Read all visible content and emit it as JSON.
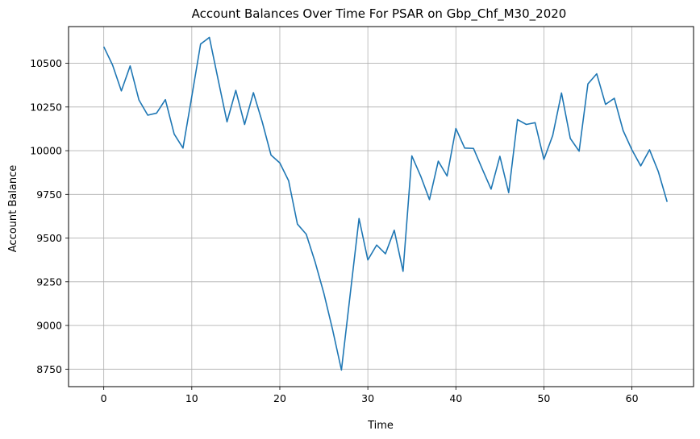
{
  "chart_data": {
    "type": "line",
    "title": "Account Balances Over Time For PSAR on Gbp_Chf_M30_2020",
    "xlabel": "Time",
    "ylabel": "Account Balance",
    "xlim": [
      -4,
      67
    ],
    "ylim": [
      8650,
      10710
    ],
    "xticks": [
      0,
      10,
      20,
      30,
      40,
      50,
      60
    ],
    "yticks": [
      8750,
      9000,
      9250,
      9500,
      9750,
      10000,
      10250,
      10500
    ],
    "grid": true,
    "legend": "none",
    "line_color": "#1f77b4",
    "series": [
      {
        "x": [
          0,
          1,
          2,
          3,
          4,
          5,
          6,
          7,
          8,
          9,
          10,
          11,
          12,
          13,
          14,
          15,
          16,
          17,
          18,
          19,
          20,
          21,
          22,
          23,
          24,
          25,
          26,
          27,
          28,
          29,
          30,
          31,
          32,
          33,
          34,
          35,
          36,
          37,
          38,
          39,
          40,
          41,
          42,
          43,
          44,
          45,
          46,
          47,
          48,
          49,
          50,
          51,
          52,
          53,
          54,
          55,
          56,
          57,
          58,
          59,
          60,
          61,
          62,
          63,
          64
        ],
        "values": [
          10595,
          10490,
          10342,
          10485,
          10290,
          10203,
          10215,
          10292,
          10095,
          10015,
          10310,
          10610,
          10648,
          10405,
          10165,
          10345,
          10150,
          10332,
          10165,
          9975,
          9930,
          9828,
          9580,
          9522,
          9365,
          9185,
          8975,
          8745,
          9180,
          9612,
          9375,
          9460,
          9410,
          9545,
          9310,
          9970,
          9855,
          9720,
          9940,
          9855,
          10127,
          10015,
          10013,
          9895,
          9780,
          9968,
          9760,
          10178,
          10150,
          10160,
          9950,
          10087,
          10330,
          10070,
          9997,
          10382,
          10440,
          10265,
          10300,
          10115,
          10005,
          9913,
          10005,
          9880,
          9707
        ]
      }
    ]
  }
}
